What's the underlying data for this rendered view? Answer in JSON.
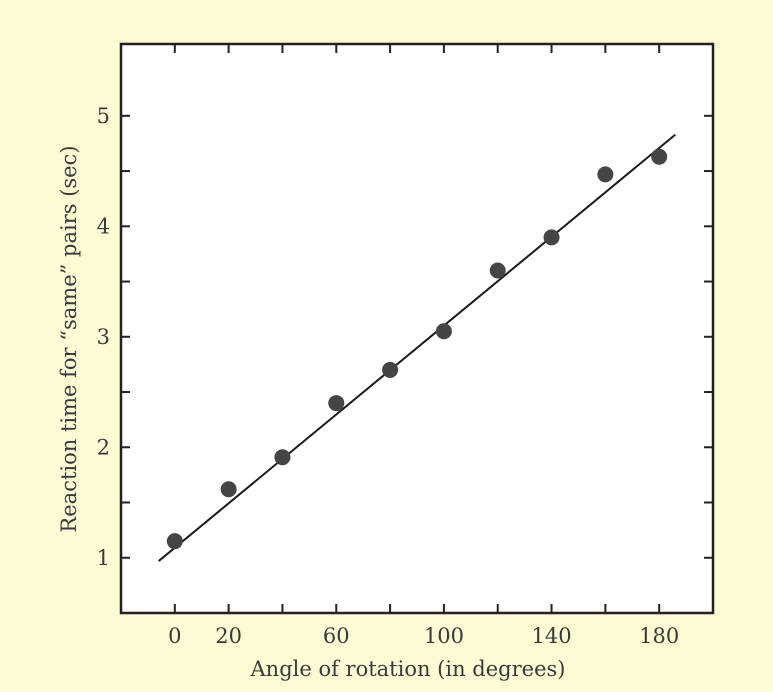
{
  "chart_data": {
    "type": "scatter",
    "title": "",
    "xlabel": "Angle of rotation (in degrees)",
    "ylabel": "Reaction time for “same” pairs (sec)",
    "xlim": [
      -20,
      200
    ],
    "ylim": [
      0.5,
      5.65
    ],
    "x_tick_labels": [
      {
        "value": 0,
        "label": "0"
      },
      {
        "value": 20,
        "label": "20"
      },
      {
        "value": 60,
        "label": "60"
      },
      {
        "value": 100,
        "label": "100"
      },
      {
        "value": 140,
        "label": "140"
      },
      {
        "value": 180,
        "label": "180"
      }
    ],
    "x_minor_ticks": [
      0,
      20,
      40,
      60,
      80,
      100,
      120,
      140,
      160,
      180
    ],
    "y_tick_labels": [
      {
        "value": 1,
        "label": "1"
      },
      {
        "value": 2,
        "label": "2"
      },
      {
        "value": 3,
        "label": "3"
      },
      {
        "value": 4,
        "label": "4"
      },
      {
        "value": 5,
        "label": "5"
      }
    ],
    "y_minor_ticks": [
      1,
      1.5,
      2,
      2.5,
      3,
      3.5,
      4,
      4.5,
      5
    ],
    "points": [
      {
        "x": 0,
        "y": 1.15
      },
      {
        "x": 20,
        "y": 1.62
      },
      {
        "x": 40,
        "y": 1.91
      },
      {
        "x": 60,
        "y": 2.4
      },
      {
        "x": 80,
        "y": 2.7
      },
      {
        "x": 100,
        "y": 3.05
      },
      {
        "x": 120,
        "y": 3.6
      },
      {
        "x": 140,
        "y": 3.9
      },
      {
        "x": 160,
        "y": 4.47
      },
      {
        "x": 180,
        "y": 4.63
      }
    ],
    "fit_line": {
      "x": [
        -6,
        186
      ],
      "y": [
        0.97,
        4.83
      ]
    },
    "grid": false,
    "colors": {
      "background": "#fdfbd4",
      "plot_area": "#ffffff",
      "points": "#454545",
      "line": "#1a1a1a"
    }
  }
}
